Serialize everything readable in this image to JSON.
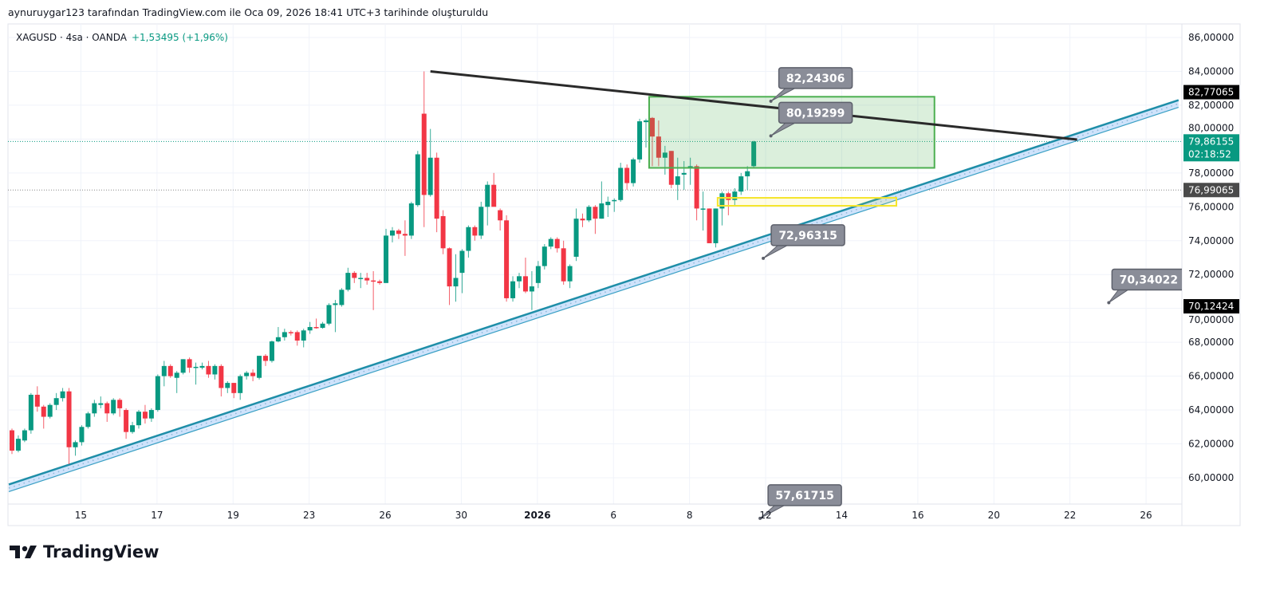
{
  "caption": "aynuruygar123 tarafından TradingView.com ile Oca 09, 2026 18:41 UTC+3 tarihinde oluşturuldu",
  "symbol": {
    "name": "XAGUSD · 4sa · OANDA",
    "change": "+1,53495 (+1,96%)"
  },
  "logo": {
    "text": "TradingView"
  },
  "colors": {
    "up": "#089981",
    "down": "#f23645",
    "accent": "#089981"
  },
  "chart_data": {
    "type": "candlestick",
    "title": "XAGUSD · 4sa · OANDA",
    "ylim": [
      58.5,
      87
    ],
    "y_ticks": [
      60,
      62,
      64,
      66,
      68,
      70,
      72,
      74,
      76,
      78,
      80,
      82,
      84,
      86
    ],
    "y_tick_labels": [
      "60,00000",
      "62,00000",
      "64,00000",
      "66,00000",
      "68,00000",
      "70,00000",
      "72,00000",
      "74,00000",
      "76,00000",
      "78,00000",
      "80,00000",
      "82,00000",
      "84,00000",
      "86,00000"
    ],
    "x_tick_labels": [
      "15",
      "17",
      "19",
      "23",
      "26",
      "30",
      "2026",
      "6",
      "8",
      "12",
      "14",
      "16",
      "20",
      "22",
      "26"
    ],
    "x_tick_bar_index": [
      11,
      23,
      35,
      47,
      59,
      71,
      83,
      95,
      107,
      119,
      131,
      143,
      155,
      167,
      179
    ],
    "ohlc": [
      [
        62.8,
        62.9,
        61.4,
        61.6
      ],
      [
        61.6,
        62.5,
        61.5,
        62.3
      ],
      [
        62.2,
        62.9,
        62.1,
        62.8
      ],
      [
        62.8,
        65.0,
        62.6,
        64.9
      ],
      [
        64.9,
        65.4,
        63.9,
        64.2
      ],
      [
        64.2,
        64.3,
        62.9,
        63.6
      ],
      [
        63.6,
        64.4,
        63.5,
        64.3
      ],
      [
        64.3,
        65.0,
        64.0,
        64.7
      ],
      [
        64.7,
        65.3,
        64.5,
        65.1
      ],
      [
        65.1,
        65.3,
        60.8,
        61.8
      ],
      [
        61.8,
        62.2,
        61.3,
        62.1
      ],
      [
        62.1,
        63.1,
        61.9,
        63.0
      ],
      [
        63.0,
        63.9,
        62.9,
        63.8
      ],
      [
        63.8,
        64.6,
        63.6,
        64.4
      ],
      [
        64.3,
        64.8,
        64.1,
        64.4
      ],
      [
        64.4,
        64.5,
        63.3,
        63.8
      ],
      [
        63.8,
        64.7,
        63.7,
        64.6
      ],
      [
        64.6,
        64.7,
        63.6,
        64.1
      ],
      [
        64.0,
        64.1,
        62.3,
        62.7
      ],
      [
        62.7,
        63.3,
        62.6,
        63.1
      ],
      [
        63.1,
        64.0,
        62.9,
        63.9
      ],
      [
        63.9,
        64.3,
        63.2,
        63.5
      ],
      [
        63.5,
        64.1,
        63.3,
        64.0
      ],
      [
        64.0,
        66.1,
        63.9,
        66.0
      ],
      [
        66.0,
        66.9,
        65.4,
        66.6
      ],
      [
        66.6,
        66.7,
        65.9,
        66.0
      ],
      [
        65.9,
        66.3,
        65.0,
        66.2
      ],
      [
        66.2,
        67.0,
        66.1,
        67.0
      ],
      [
        67.0,
        67.1,
        66.2,
        66.5
      ],
      [
        66.5,
        66.8,
        65.5,
        66.55
      ],
      [
        66.5,
        66.8,
        66.4,
        66.6
      ],
      [
        66.6,
        66.9,
        65.9,
        66.1
      ],
      [
        66.1,
        66.7,
        65.8,
        66.6
      ],
      [
        66.6,
        66.7,
        64.8,
        65.3
      ],
      [
        65.3,
        65.7,
        65.0,
        65.6
      ],
      [
        65.6,
        65.6,
        64.7,
        65.0
      ],
      [
        65.0,
        66.1,
        64.6,
        66.0
      ],
      [
        66.0,
        66.3,
        65.8,
        66.2
      ],
      [
        66.2,
        66.4,
        65.7,
        66.0
      ],
      [
        65.9,
        67.2,
        65.8,
        67.2
      ],
      [
        67.2,
        67.3,
        66.6,
        66.9
      ],
      [
        66.9,
        68.1,
        66.8,
        68.05
      ],
      [
        68.05,
        68.9,
        68.0,
        68.3
      ],
      [
        68.3,
        68.8,
        68.1,
        68.6
      ],
      [
        68.6,
        68.7,
        68.4,
        68.55
      ],
      [
        68.6,
        68.7,
        67.8,
        68.1
      ],
      [
        68.1,
        68.8,
        67.7,
        68.7
      ],
      [
        68.7,
        69.2,
        68.5,
        68.9
      ],
      [
        68.9,
        69.4,
        68.8,
        68.85
      ],
      [
        68.85,
        69.2,
        68.8,
        69.1
      ],
      [
        69.1,
        70.3,
        69.0,
        70.2
      ],
      [
        70.2,
        70.5,
        68.6,
        70.3
      ],
      [
        70.2,
        71.2,
        70.1,
        71.1
      ],
      [
        71.1,
        72.4,
        71.0,
        72.1
      ],
      [
        72.1,
        72.2,
        71.5,
        71.8
      ],
      [
        71.8,
        72.1,
        71.2,
        71.8
      ],
      [
        71.8,
        72.1,
        71.4,
        71.65
      ],
      [
        71.65,
        72.2,
        69.9,
        71.6
      ],
      [
        71.6,
        71.7,
        71.4,
        71.5
      ],
      [
        71.5,
        74.7,
        71.5,
        74.3
      ],
      [
        74.3,
        74.8,
        73.9,
        74.6
      ],
      [
        74.6,
        74.7,
        74.1,
        74.4
      ],
      [
        74.4,
        75.2,
        73.1,
        74.3
      ],
      [
        74.3,
        76.3,
        74.1,
        76.2
      ],
      [
        76.1,
        79.3,
        76.0,
        79.1
      ],
      [
        81.5,
        84.0,
        74.8,
        76.7
      ],
      [
        76.7,
        80.6,
        76.6,
        78.9
      ],
      [
        78.9,
        79.2,
        74.5,
        75.3
      ],
      [
        75.45,
        75.8,
        73.2,
        73.55
      ],
      [
        73.55,
        73.6,
        70.2,
        71.3
      ],
      [
        71.3,
        73.2,
        70.4,
        71.8
      ],
      [
        72.1,
        73.5,
        70.9,
        73.4
      ],
      [
        73.4,
        74.9,
        73.0,
        74.8
      ],
      [
        74.8,
        74.9,
        74.0,
        74.3
      ],
      [
        74.3,
        76.3,
        74.1,
        76.0
      ],
      [
        76.0,
        77.5,
        74.9,
        77.3
      ],
      [
        77.3,
        78.0,
        76.2,
        76.0
      ],
      [
        75.8,
        75.9,
        74.6,
        75.2
      ],
      [
        75.2,
        75.5,
        70.4,
        70.6
      ],
      [
        70.6,
        71.9,
        70.4,
        71.6
      ],
      [
        71.6,
        72.1,
        71.2,
        71.9
      ],
      [
        71.9,
        73.0,
        70.9,
        71.0
      ],
      [
        71.0,
        72.2,
        69.9,
        71.3
      ],
      [
        71.5,
        72.8,
        71.2,
        72.5
      ],
      [
        72.5,
        73.8,
        72.3,
        73.65
      ],
      [
        73.65,
        74.2,
        73.5,
        74.1
      ],
      [
        74.1,
        74.2,
        73.3,
        73.55
      ],
      [
        73.55,
        74.0,
        71.4,
        71.6
      ],
      [
        71.6,
        72.6,
        71.2,
        72.5
      ],
      [
        73.05,
        75.9,
        72.8,
        75.3
      ],
      [
        75.3,
        75.6,
        74.8,
        75.2
      ],
      [
        75.2,
        76.1,
        75.1,
        76.0
      ],
      [
        76.0,
        76.1,
        74.4,
        75.3
      ],
      [
        75.3,
        77.5,
        75.3,
        76.2
      ],
      [
        76.1,
        76.6,
        75.4,
        76.3
      ],
      [
        76.4,
        76.5,
        75.7,
        76.4
      ],
      [
        76.4,
        78.6,
        76.3,
        78.3
      ],
      [
        78.3,
        78.5,
        77.0,
        77.4
      ],
      [
        77.4,
        78.9,
        77.2,
        78.8
      ],
      [
        78.8,
        81.2,
        78.6,
        81.05
      ],
      [
        81.0,
        81.2,
        79.5,
        81.1
      ],
      [
        81.25,
        81.3,
        78.4,
        80.15
      ],
      [
        80.15,
        81.1,
        78.4,
        78.9
      ],
      [
        78.9,
        79.6,
        77.9,
        79.2
      ],
      [
        79.3,
        79.3,
        77.1,
        77.3
      ],
      [
        77.3,
        78.9,
        76.4,
        77.8
      ],
      [
        77.9,
        78.7,
        77.0,
        78.0
      ],
      [
        78.3,
        78.9,
        77.3,
        78.4
      ],
      [
        78.4,
        78.5,
        75.2,
        75.9
      ],
      [
        75.9,
        76.9,
        74.6,
        75.9
      ],
      [
        75.9,
        75.9,
        73.85,
        73.85
      ],
      [
        73.85,
        75.9,
        73.6,
        75.9
      ],
      [
        75.9,
        76.9,
        74.9,
        76.8
      ],
      [
        76.8,
        76.9,
        75.5,
        76.4
      ],
      [
        76.4,
        77.1,
        76.1,
        76.9
      ],
      [
        76.9,
        78.0,
        76.7,
        77.8
      ],
      [
        77.8,
        78.4,
        77.0,
        78.1
      ],
      [
        78.4,
        79.9,
        78.3,
        79.86
      ]
    ],
    "last_price": {
      "value": 79.86155,
      "label": "79,86155",
      "countdown": "02:18:52"
    },
    "price_marks": [
      {
        "value": 82.77065,
        "label": "82,77065",
        "color": "#000000"
      },
      {
        "value": 76.99065,
        "label": "76,99065",
        "color": "#4a4a4a"
      },
      {
        "value": 70.12424,
        "label": "70,12424",
        "color": "#000000"
      }
    ],
    "drawings": {
      "resistance_line": {
        "from": [
          66,
          84.0
        ],
        "to": [
          168,
          79.97
        ],
        "color": "#2a2a2a"
      },
      "support_channel": {
        "from": [
          -0.5,
          59.6
        ],
        "to": [
          184,
          82.3
        ],
        "color": "#1e9fb5"
      },
      "green_zone": {
        "from_bar": 100.5,
        "to_bar": 145.5,
        "top": 82.5,
        "bottom": 78.3,
        "color": "#4caf50"
      },
      "yellow_zone": {
        "from_bar": 111.3,
        "to_bar": 139.5,
        "top": 76.53,
        "bottom": 76.06,
        "color": "#f5e52a"
      },
      "callouts": [
        {
          "label": "82,24306",
          "bar": 119.7,
          "price": 82.24
        },
        {
          "label": "80,19299",
          "bar": 119.7,
          "price": 80.19
        },
        {
          "label": "72,96315",
          "bar": 118.5,
          "price": 72.96
        },
        {
          "label": "70,34022",
          "bar": 173.0,
          "price": 70.34
        },
        {
          "label": "57,61715",
          "bar": 118,
          "price": 57.6
        }
      ]
    }
  }
}
